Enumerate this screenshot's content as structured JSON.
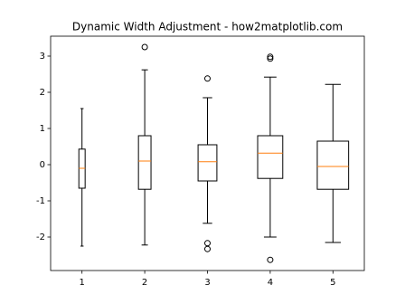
{
  "chart_data": {
    "type": "box",
    "title": "Dynamic Width Adjustment - how2matplotlib.com",
    "categories": [
      "1",
      "2",
      "3",
      "4",
      "5"
    ],
    "boxes": [
      {
        "whislo": -2.25,
        "q1": -0.65,
        "med": -0.1,
        "q3": 0.43,
        "whishi": 1.55,
        "fliers": []
      },
      {
        "whislo": -2.22,
        "q1": -0.68,
        "med": 0.1,
        "q3": 0.8,
        "whishi": 2.62,
        "fliers": [
          3.25
        ]
      },
      {
        "whislo": -1.62,
        "q1": -0.45,
        "med": 0.08,
        "q3": 0.55,
        "whishi": 1.85,
        "fliers": [
          2.38,
          -2.17,
          -2.33
        ]
      },
      {
        "whislo": -2.0,
        "q1": -0.38,
        "med": 0.32,
        "q3": 0.8,
        "whishi": 2.42,
        "fliers": [
          2.98,
          2.93,
          -2.63
        ]
      },
      {
        "whislo": -2.15,
        "q1": -0.68,
        "med": -0.05,
        "q3": 0.65,
        "whishi": 2.22,
        "fliers": []
      }
    ],
    "widths": [
      0.1,
      0.2,
      0.3,
      0.4,
      0.5
    ],
    "xlim": [
      0.5,
      5.5
    ],
    "ylim": [
      -2.925,
      3.55
    ],
    "yticks": [
      -2,
      -1,
      0,
      1,
      2,
      3
    ],
    "color": "#000000",
    "median_color": "#ff7f0e"
  }
}
